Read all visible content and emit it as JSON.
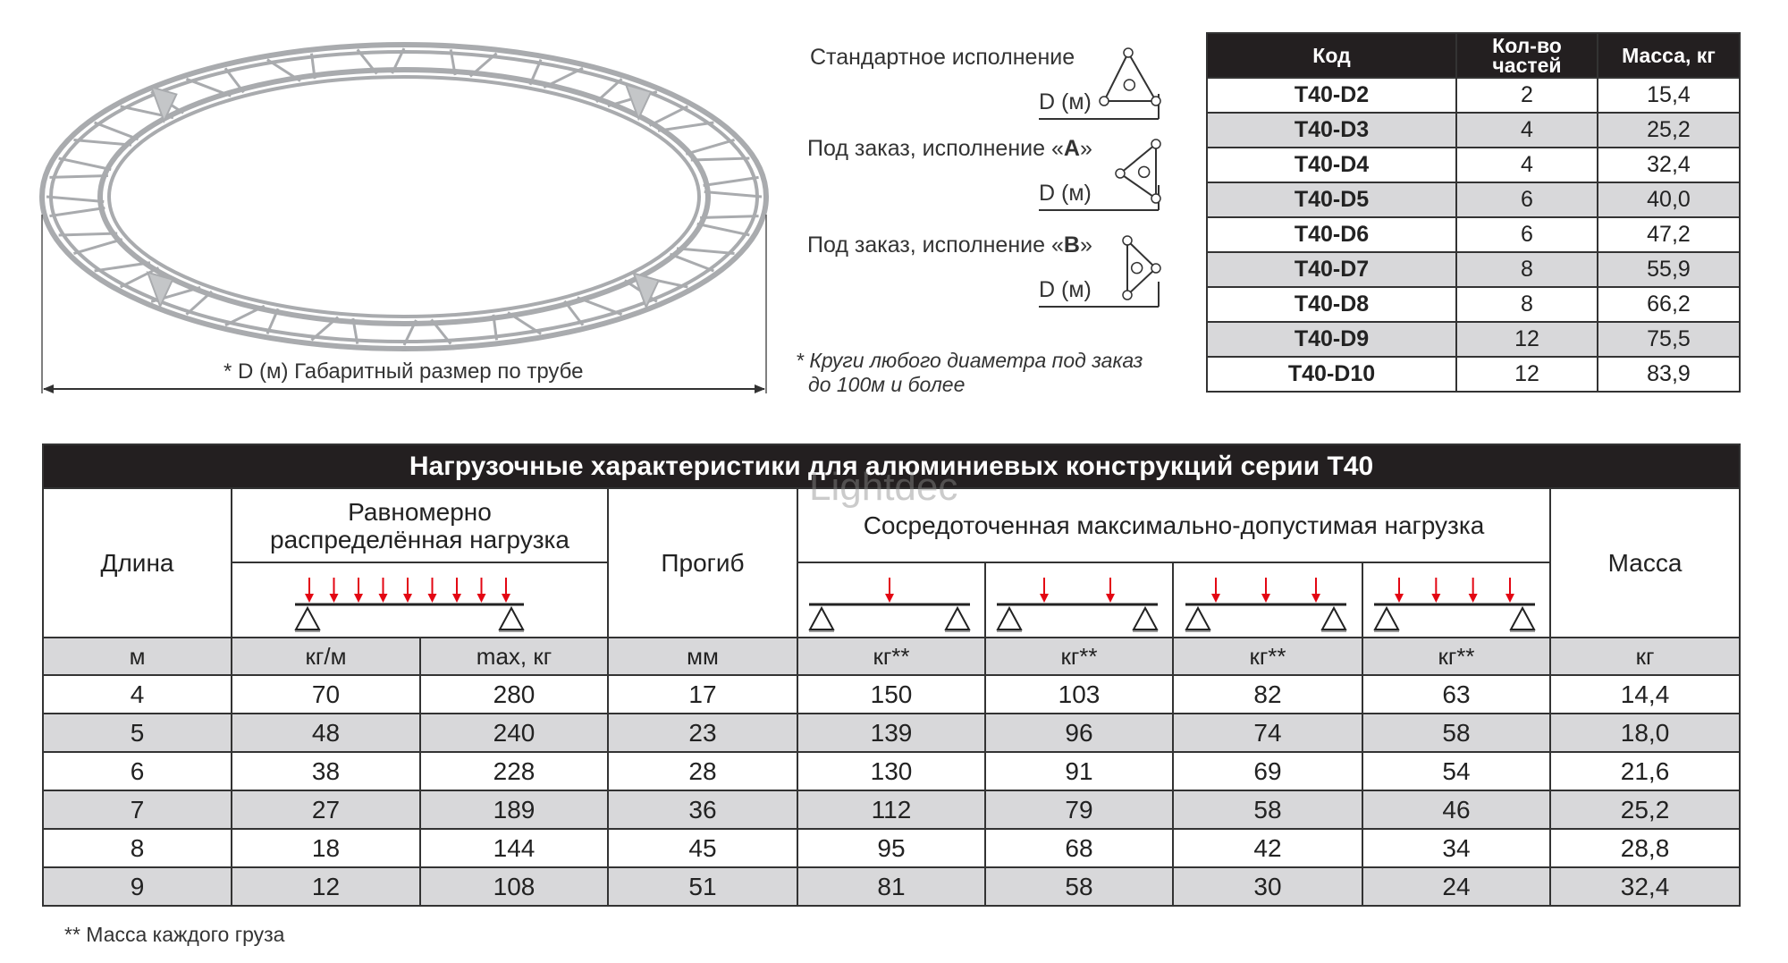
{
  "ring": {
    "caption": "* D (м)  Габаритный размер по трубе",
    "tube_color": "#a9abae"
  },
  "profiles": [
    {
      "label": "Стандартное исполнение",
      "variant": "",
      "dim": "D (м)",
      "orientation": "up"
    },
    {
      "label": "Под заказ, исполнение «",
      "variant": "A",
      "suffix": "»",
      "dim": "D (м)",
      "orientation": "left"
    },
    {
      "label": "Под заказ, исполнение «",
      "variant": "B",
      "suffix": "»",
      "dim": "D (м)",
      "orientation": "right"
    }
  ],
  "profiles_note": [
    "* Круги любого диаметра под заказ",
    "до 100м и более"
  ],
  "codes_table": {
    "headers": [
      "Код",
      "Кол-во частей",
      "Масса, кг"
    ],
    "rows": [
      [
        "T40-D2",
        "2",
        "15,4"
      ],
      [
        "T40-D3",
        "4",
        "25,2"
      ],
      [
        "T40-D4",
        "4",
        "32,4"
      ],
      [
        "T40-D5",
        "6",
        "40,0"
      ],
      [
        "T40-D6",
        "6",
        "47,2"
      ],
      [
        "T40-D7",
        "8",
        "55,9"
      ],
      [
        "T40-D8",
        "8",
        "66,2"
      ],
      [
        "T40-D9",
        "12",
        "75,5"
      ],
      [
        "T40-D10",
        "12",
        "83,9"
      ]
    ]
  },
  "loads_table": {
    "title": "Нагрузочные характеристики для алюминиевых конструкций серии T40",
    "watermark": "Lightdec",
    "col_length": "Длина",
    "col_uniform": "Равномерно распределённая нагрузка",
    "col_deflection": "Прогиб",
    "col_point": "Сосредоточенная максимально-допустимая нагрузка",
    "col_mass": "Масса",
    "diagrams": {
      "uniform_arrows": 9,
      "point_arrows": [
        1,
        2,
        3,
        4
      ],
      "arrow_color": "#e30613"
    },
    "units": [
      "м",
      "кг/м",
      "max, кг",
      "мм",
      "кг**",
      "кг**",
      "кг**",
      "кг**",
      "кг"
    ],
    "rows": [
      [
        "4",
        "70",
        "280",
        "17",
        "150",
        "103",
        "82",
        "63",
        "14,4"
      ],
      [
        "5",
        "48",
        "240",
        "23",
        "139",
        "96",
        "74",
        "58",
        "18,0"
      ],
      [
        "6",
        "38",
        "228",
        "28",
        "130",
        "91",
        "69",
        "54",
        "21,6"
      ],
      [
        "7",
        "27",
        "189",
        "36",
        "112",
        "79",
        "58",
        "46",
        "25,2"
      ],
      [
        "8",
        "18",
        "144",
        "45",
        "95",
        "68",
        "42",
        "34",
        "28,8"
      ],
      [
        "9",
        "12",
        "108",
        "51",
        "81",
        "58",
        "30",
        "24",
        "32,4"
      ]
    ]
  },
  "footnote": "** Масса каждого груза"
}
